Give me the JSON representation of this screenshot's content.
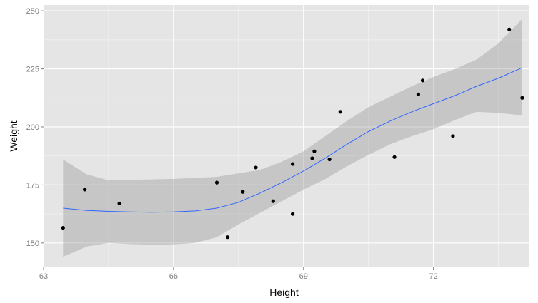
{
  "chart_data": {
    "type": "scatter",
    "xlabel": "Height",
    "ylabel": "Weight",
    "xlim": [
      63.0,
      74.2
    ],
    "ylim": [
      139.5,
      252.5
    ],
    "xticks": [
      63,
      66,
      69,
      72
    ],
    "yticks": [
      150,
      175,
      200,
      225,
      250
    ],
    "xminor": [
      64.5,
      67.5,
      70.5,
      73.5
    ],
    "yminor": [
      162.5,
      187.5,
      212.5,
      237.5
    ],
    "grid": true,
    "colors": {
      "panel": "#e5e5e5",
      "grid_major": "#ffffff",
      "grid_minor": "#f2f2f2",
      "band": "#999999",
      "smooth": "#3366ff",
      "points": "#000000",
      "ticks": "#7f7f7f"
    },
    "points": [
      {
        "x": 63.45,
        "y": 156.5
      },
      {
        "x": 63.95,
        "y": 173.0
      },
      {
        "x": 64.75,
        "y": 167.0
      },
      {
        "x": 67.0,
        "y": 176.0
      },
      {
        "x": 67.25,
        "y": 152.5
      },
      {
        "x": 67.6,
        "y": 172.0
      },
      {
        "x": 67.9,
        "y": 182.5
      },
      {
        "x": 68.3,
        "y": 168.0
      },
      {
        "x": 68.75,
        "y": 184.0
      },
      {
        "x": 68.75,
        "y": 162.5
      },
      {
        "x": 69.2,
        "y": 186.5
      },
      {
        "x": 69.25,
        "y": 189.5
      },
      {
        "x": 69.6,
        "y": 186.0
      },
      {
        "x": 69.85,
        "y": 206.5
      },
      {
        "x": 71.1,
        "y": 187.0
      },
      {
        "x": 71.65,
        "y": 214.0
      },
      {
        "x": 71.75,
        "y": 220.0
      },
      {
        "x": 72.45,
        "y": 196.0
      },
      {
        "x": 73.75,
        "y": 242.0
      },
      {
        "x": 74.05,
        "y": 212.5
      }
    ],
    "smooth": {
      "x": [
        63.45,
        64.0,
        64.5,
        65.0,
        65.5,
        66.0,
        66.5,
        67.0,
        67.5,
        68.0,
        68.5,
        69.0,
        69.5,
        70.0,
        70.5,
        71.0,
        71.5,
        72.0,
        72.5,
        73.0,
        73.5,
        74.05
      ],
      "y": [
        165.0,
        164.0,
        163.6,
        163.4,
        163.2,
        163.4,
        163.8,
        165.0,
        167.5,
        171.5,
        176.0,
        181.0,
        186.5,
        192.5,
        198.0,
        202.5,
        206.5,
        210.0,
        213.5,
        217.5,
        221.0,
        225.5
      ],
      "lower": [
        144.0,
        148.5,
        150.0,
        149.5,
        149.2,
        149.4,
        150.0,
        152.5,
        158.0,
        163.0,
        168.0,
        173.0,
        177.5,
        183.0,
        188.0,
        192.5,
        196.0,
        199.0,
        203.0,
        206.5,
        206.0,
        205.0
      ],
      "upper": [
        186.0,
        179.5,
        177.0,
        177.2,
        177.4,
        177.6,
        178.0,
        178.5,
        180.0,
        181.5,
        185.0,
        189.5,
        196.0,
        202.5,
        208.5,
        213.0,
        217.5,
        221.5,
        225.0,
        229.0,
        236.0,
        246.5
      ]
    }
  }
}
